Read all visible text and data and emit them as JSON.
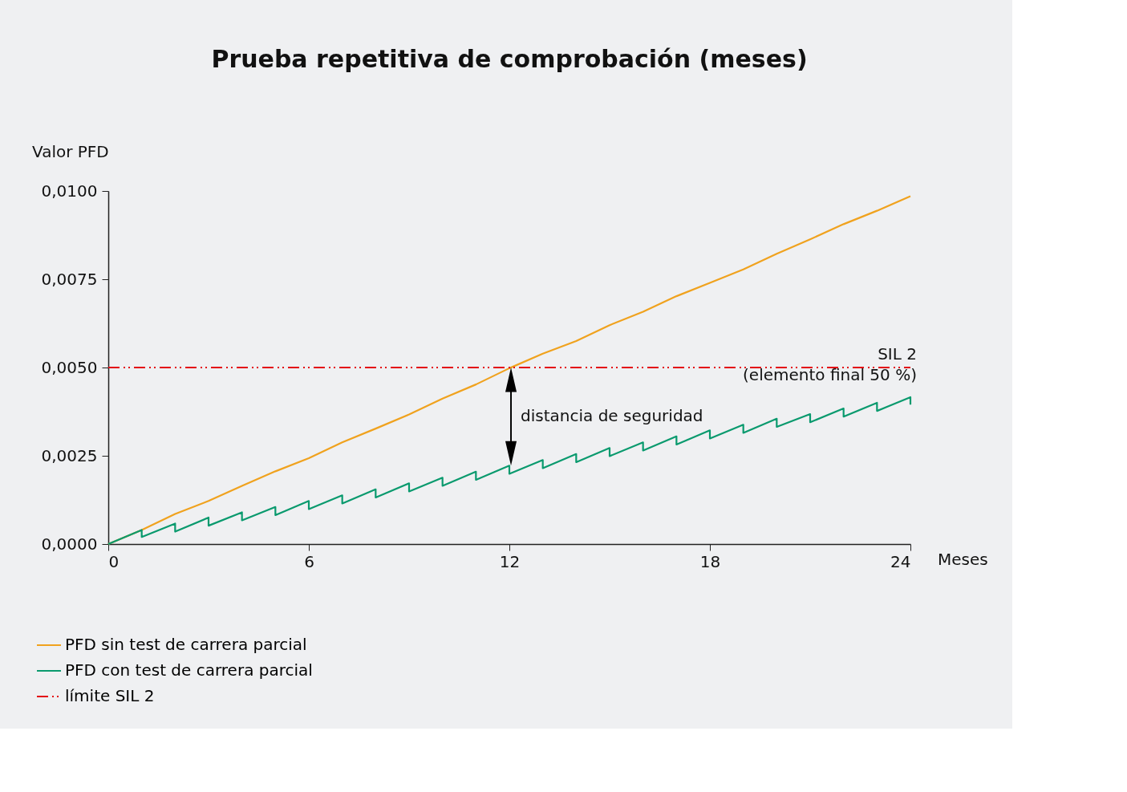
{
  "chart_data": {
    "type": "line",
    "title": "Prueba repetitiva de comprobación (meses)",
    "ylabel": "Valor PFD",
    "xlabel": "Meses",
    "xlim": [
      0,
      24
    ],
    "xticks": [
      0,
      6,
      12,
      18,
      24
    ],
    "ylim": [
      0,
      0.01
    ],
    "yticks": [
      {
        "value": 0,
        "label": "0,0000"
      },
      {
        "value": 0.0025,
        "label": "0,0025"
      },
      {
        "value": 0.005,
        "label": "0,0050"
      },
      {
        "value": 0.0075,
        "label": "0,0075"
      },
      {
        "value": 0.01,
        "label": "0,0100"
      }
    ],
    "grid": false,
    "legend": "bottom left",
    "marker": "none",
    "series": [
      {
        "name": "PFD sin test de carrera parcial",
        "color": "#f0a21e",
        "line_style": "solid",
        "x": [
          0,
          1,
          2,
          3,
          4,
          5,
          6,
          7,
          8,
          9,
          10,
          11,
          12,
          13,
          14,
          15,
          16,
          17,
          18,
          19,
          20,
          21,
          22,
          23,
          24
        ],
        "values": [
          0,
          0.0004,
          0.00085,
          0.00122,
          0.00165,
          0.00206,
          0.00243,
          0.00288,
          0.00327,
          0.00367,
          0.00412,
          0.00452,
          0.00498,
          0.00539,
          0.00575,
          0.0062,
          0.00658,
          0.00702,
          0.0074,
          0.00778,
          0.00822,
          0.00863,
          0.00906,
          0.00944,
          0.00985
        ]
      },
      {
        "name": "PFD con test de carrera parcial",
        "color": "#0a9a6e",
        "line_style": "solid",
        "x": [
          0,
          1,
          1,
          2,
          2,
          3,
          3,
          4,
          4,
          5,
          5,
          6,
          6,
          7,
          7,
          8,
          8,
          9,
          9,
          10,
          10,
          11,
          11,
          12,
          12,
          13,
          13,
          14,
          14,
          15,
          15,
          16,
          16,
          17,
          17,
          18,
          18,
          19,
          19,
          20,
          20,
          21,
          21,
          22,
          22,
          23,
          23,
          24,
          24
        ],
        "values": [
          0,
          0.0004,
          0.0002,
          0.00058,
          0.00035,
          0.00075,
          0.00052,
          0.0009,
          0.00067,
          0.00105,
          0.00082,
          0.00122,
          0.00099,
          0.00138,
          0.00115,
          0.00155,
          0.00132,
          0.00172,
          0.00149,
          0.00188,
          0.00165,
          0.00205,
          0.00182,
          0.00222,
          0.00199,
          0.00238,
          0.00215,
          0.00255,
          0.00232,
          0.00272,
          0.00249,
          0.00288,
          0.00265,
          0.00305,
          0.00282,
          0.00322,
          0.00299,
          0.00338,
          0.00315,
          0.00355,
          0.00332,
          0.00368,
          0.00345,
          0.00384,
          0.00361,
          0.004,
          0.00377,
          0.00416,
          0.00395
        ]
      },
      {
        "name": "límite SIL 2",
        "color": "#e30613",
        "line_style": "dashed",
        "x": [
          0,
          24
        ],
        "values": [
          0.005,
          0.005
        ]
      }
    ],
    "annotations": [
      {
        "text": "SIL 2\n(elemento final 50 %)",
        "x": 24,
        "y": 0.005
      },
      "distancia de seguridad"
    ]
  }
}
